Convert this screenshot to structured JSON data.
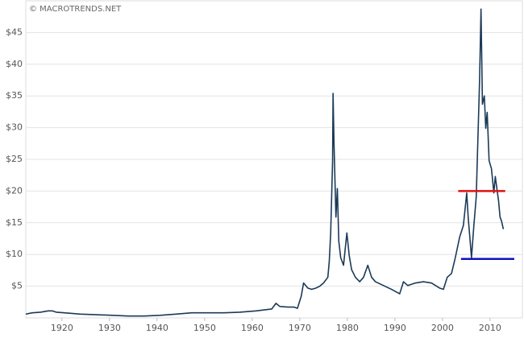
{
  "chart_data": {
    "type": "line",
    "watermark": "© MACROTRENDS.NET",
    "x": [
      1912.4,
      1913.8,
      1915.5,
      1917.1,
      1918.0,
      1918.8,
      1920.5,
      1923.9,
      1927.2,
      1930.6,
      1933.9,
      1937.3,
      1940.6,
      1944.0,
      1947.3,
      1950.7,
      1954.1,
      1957.4,
      1960.8,
      1964.1,
      1965.0,
      1965.8,
      1967.5,
      1968.8,
      1969.5,
      1970.3,
      1970.8,
      1971.7,
      1972.5,
      1973.4,
      1974.2,
      1975.0,
      1975.9,
      1976.2,
      1976.5,
      1976.9,
      1977.0,
      1977.2,
      1977.6,
      1977.9,
      1978.2,
      1978.6,
      1979.2,
      1979.9,
      1980.4,
      1980.9,
      1981.7,
      1982.6,
      1983.4,
      1984.3,
      1985.1,
      1985.9,
      1987.6,
      1989.3,
      1991.0,
      1991.8,
      1992.7,
      1994.3,
      1996.0,
      1997.7,
      1999.4,
      2000.2,
      2001.0,
      2001.9,
      2002.7,
      2003.6,
      2004.4,
      2005.1,
      2005.4,
      2006.1,
      2006.6,
      2007.1,
      2007.8,
      2008.1,
      2008.4,
      2008.8,
      2009.1,
      2009.4,
      2009.8,
      2010.3,
      2010.8,
      2011.1,
      2011.8,
      2012.1,
      2012.4,
      2012.8
    ],
    "series": [
      {
        "color": "#1b3a57",
        "values": [
          0.6,
          0.8,
          0.9,
          1.1,
          1.1,
          0.9,
          0.8,
          0.6,
          0.5,
          0.4,
          0.3,
          0.3,
          0.4,
          0.6,
          0.8,
          0.8,
          0.8,
          0.9,
          1.1,
          1.4,
          2.3,
          1.8,
          1.7,
          1.7,
          1.5,
          3.4,
          5.5,
          4.7,
          4.5,
          4.7,
          5.0,
          5.5,
          6.4,
          8.9,
          13.4,
          24.8,
          35.4,
          27.4,
          15.9,
          20.4,
          12.1,
          9.5,
          8.3,
          13.4,
          9.8,
          7.6,
          6.4,
          5.7,
          6.4,
          8.3,
          6.4,
          5.7,
          5.1,
          4.5,
          3.8,
          5.7,
          5.1,
          5.5,
          5.7,
          5.5,
          4.7,
          4.5,
          6.4,
          7.0,
          9.5,
          12.7,
          14.6,
          19.7,
          15.9,
          9.5,
          14.6,
          19.1,
          37.5,
          48.7,
          33.7,
          35.0,
          29.9,
          32.4,
          24.8,
          23.5,
          19.7,
          22.3,
          18.4,
          15.9,
          15.3,
          14.0
        ]
      }
    ],
    "reference_lines": [
      {
        "value": 20,
        "x": [
          2003.3,
          2013.2
        ],
        "color": "#e01010"
      },
      {
        "value": 9.3,
        "x": [
          2003.9,
          2015.1
        ],
        "color": "#1010c0"
      }
    ],
    "xlim": [
      1912.4,
      2016.8
    ],
    "xticks": [
      1920,
      1930,
      1940,
      1950,
      1960,
      1970,
      1980,
      1990,
      2000,
      2010
    ],
    "ylim": [
      0,
      50
    ],
    "yticks": [
      {
        "value": 5,
        "label": "$5"
      },
      {
        "value": 10,
        "label": "$10"
      },
      {
        "value": 15,
        "label": "$15"
      },
      {
        "value": 20,
        "label": "$20"
      },
      {
        "value": 25,
        "label": "$25"
      },
      {
        "value": 30,
        "label": "$30"
      },
      {
        "value": 35,
        "label": "$35"
      },
      {
        "value": 40,
        "label": "$40"
      },
      {
        "value": 45,
        "label": "$45"
      }
    ],
    "grid": true
  }
}
